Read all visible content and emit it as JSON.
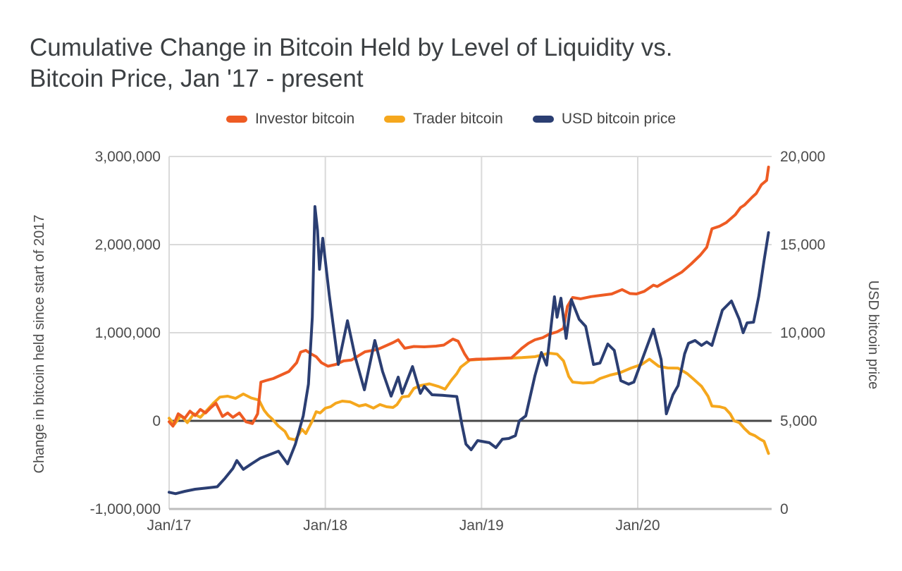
{
  "title_lines": [
    "Cumulative Change in Bitcoin Held by Level of Liquidity vs.",
    "Bitcoin Price, Jan '17 - present"
  ],
  "chart_data": {
    "type": "line",
    "title": "Cumulative Change in Bitcoin Held by Level of Liquidity vs. Bitcoin Price, Jan '17 - present",
    "legend_position": "top",
    "grid": true,
    "x_axis": {
      "unit": "months since Jan 2017",
      "range": [
        0,
        46.05
      ],
      "ticks": [
        {
          "pos": 0,
          "label": "Jan/17"
        },
        {
          "pos": 12,
          "label": "Jan/18"
        },
        {
          "pos": 24,
          "label": "Jan/19"
        },
        {
          "pos": 36,
          "label": "Jan/20"
        }
      ]
    },
    "left_axis": {
      "label": "Change in bitcoin held since start of 2017",
      "range": [
        -1000000,
        3000000
      ],
      "grid": [
        3000000,
        2000000,
        1000000
      ],
      "zero_line_value": 0,
      "ticks": [
        {
          "value": 3000000,
          "label": "3,000,000"
        },
        {
          "value": 2000000,
          "label": "2,000,000"
        },
        {
          "value": 1000000,
          "label": "1,000,000"
        },
        {
          "value": 0,
          "label": "0"
        },
        {
          "value": -1000000,
          "label": "-1,000,000"
        }
      ]
    },
    "right_axis": {
      "label": "USD bitcoin price",
      "range": [
        0,
        20000
      ],
      "ticks": [
        {
          "value": 20000,
          "label": "20,000"
        },
        {
          "value": 15000,
          "label": "15,000"
        },
        {
          "value": 10000,
          "label": "10,000"
        },
        {
          "value": 5000,
          "label": "5,000"
        },
        {
          "value": 0,
          "label": "0"
        }
      ]
    },
    "series": [
      {
        "name": "Investor bitcoin",
        "color": "#ee5b23",
        "axis": "left",
        "points": [
          [
            0,
            -10000
          ],
          [
            0.3,
            -60000
          ],
          [
            0.7,
            80000
          ],
          [
            1.2,
            30000
          ],
          [
            1.6,
            110000
          ],
          [
            2,
            60000
          ],
          [
            2.4,
            130000
          ],
          [
            2.8,
            90000
          ],
          [
            3.2,
            150000
          ],
          [
            3.6,
            200000
          ],
          [
            4.1,
            50000
          ],
          [
            4.5,
            90000
          ],
          [
            4.9,
            40000
          ],
          [
            5.4,
            90000
          ],
          [
            5.9,
            -10000
          ],
          [
            6.4,
            -30000
          ],
          [
            6.8,
            80000
          ],
          [
            7.05,
            440000
          ],
          [
            7.5,
            460000
          ],
          [
            8,
            480000
          ],
          [
            8.6,
            520000
          ],
          [
            9.2,
            560000
          ],
          [
            9.8,
            660000
          ],
          [
            10.1,
            780000
          ],
          [
            10.5,
            800000
          ],
          [
            10.9,
            760000
          ],
          [
            11.3,
            728000
          ],
          [
            11.7,
            660000
          ],
          [
            12.2,
            620000
          ],
          [
            12.8,
            640000
          ],
          [
            13.4,
            680000
          ],
          [
            14,
            690000
          ],
          [
            15.05,
            784000
          ],
          [
            16,
            810000
          ],
          [
            17.2,
            888000
          ],
          [
            17.6,
            920000
          ],
          [
            18.1,
            824000
          ],
          [
            18.8,
            844000
          ],
          [
            19.6,
            840000
          ],
          [
            20.5,
            848000
          ],
          [
            21.1,
            860000
          ],
          [
            21.8,
            928000
          ],
          [
            22.2,
            904000
          ],
          [
            22.7,
            760000
          ],
          [
            23,
            692000
          ],
          [
            23.6,
            700000
          ],
          [
            24.4,
            702000
          ],
          [
            25.2,
            708000
          ],
          [
            26.3,
            715000
          ],
          [
            26.7,
            768000
          ],
          [
            27.1,
            824000
          ],
          [
            27.6,
            880000
          ],
          [
            28.1,
            920000
          ],
          [
            28.7,
            944000
          ],
          [
            29.2,
            984000
          ],
          [
            29.8,
            1010000
          ],
          [
            30.3,
            1050000
          ],
          [
            30.6,
            1300000
          ],
          [
            31,
            1400000
          ],
          [
            31.6,
            1385000
          ],
          [
            32.4,
            1410000
          ],
          [
            33.2,
            1425000
          ],
          [
            34,
            1440000
          ],
          [
            34.8,
            1490000
          ],
          [
            35.4,
            1445000
          ],
          [
            35.9,
            1440000
          ],
          [
            36.5,
            1470000
          ],
          [
            37.2,
            1540000
          ],
          [
            37.5,
            1525000
          ],
          [
            37.9,
            1560000
          ],
          [
            38.6,
            1620000
          ],
          [
            39.4,
            1690000
          ],
          [
            40.1,
            1780000
          ],
          [
            40.8,
            1880000
          ],
          [
            41.3,
            1970000
          ],
          [
            41.7,
            2180000
          ],
          [
            42.3,
            2210000
          ],
          [
            42.8,
            2250000
          ],
          [
            43.5,
            2340000
          ],
          [
            43.9,
            2420000
          ],
          [
            44.2,
            2450000
          ],
          [
            44.8,
            2540000
          ],
          [
            45.1,
            2580000
          ],
          [
            45.5,
            2680000
          ],
          [
            45.9,
            2730000
          ],
          [
            46.05,
            2880000
          ]
        ]
      },
      {
        "name": "Trader bitcoin",
        "color": "#f5a71d",
        "axis": "left",
        "points": [
          [
            0,
            30000
          ],
          [
            0.4,
            -40000
          ],
          [
            0.9,
            60000
          ],
          [
            1.4,
            -20000
          ],
          [
            1.9,
            80000
          ],
          [
            2.4,
            40000
          ],
          [
            2.9,
            120000
          ],
          [
            3.4,
            200000
          ],
          [
            3.9,
            270000
          ],
          [
            4.5,
            280000
          ],
          [
            5.1,
            255000
          ],
          [
            5.7,
            305000
          ],
          [
            6.3,
            260000
          ],
          [
            6.9,
            235000
          ],
          [
            7.3,
            120000
          ],
          [
            7.6,
            64000
          ],
          [
            7.9,
            24000
          ],
          [
            8.4,
            -60000
          ],
          [
            8.9,
            -120000
          ],
          [
            9.2,
            -200000
          ],
          [
            9.7,
            -216000
          ],
          [
            10.2,
            -96000
          ],
          [
            10.5,
            -144000
          ],
          [
            11,
            0
          ],
          [
            11.3,
            104000
          ],
          [
            11.6,
            90000
          ],
          [
            12,
            144000
          ],
          [
            12.4,
            160000
          ],
          [
            12.8,
            200000
          ],
          [
            13.3,
            224000
          ],
          [
            13.9,
            215000
          ],
          [
            14.6,
            168000
          ],
          [
            15.1,
            184000
          ],
          [
            15.7,
            145000
          ],
          [
            16.2,
            185000
          ],
          [
            16.7,
            160000
          ],
          [
            17.2,
            152000
          ],
          [
            17.5,
            184000
          ],
          [
            17.9,
            272000
          ],
          [
            18.4,
            280000
          ],
          [
            18.8,
            368000
          ],
          [
            19.3,
            400000
          ],
          [
            20,
            420000
          ],
          [
            20.7,
            390000
          ],
          [
            21.2,
            360000
          ],
          [
            21.7,
            464000
          ],
          [
            22.1,
            536000
          ],
          [
            22.4,
            610000
          ],
          [
            23.1,
            690000
          ],
          [
            24,
            698000
          ],
          [
            25,
            704000
          ],
          [
            26.3,
            712000
          ],
          [
            27.1,
            718000
          ],
          [
            28.1,
            728000
          ],
          [
            29.2,
            768000
          ],
          [
            29.8,
            758000
          ],
          [
            30.3,
            680000
          ],
          [
            30.7,
            504000
          ],
          [
            31,
            440000
          ],
          [
            31.8,
            428000
          ],
          [
            32.6,
            436000
          ],
          [
            33.1,
            480000
          ],
          [
            33.9,
            520000
          ],
          [
            34.6,
            544000
          ],
          [
            35.5,
            600000
          ],
          [
            36.3,
            640000
          ],
          [
            36.9,
            700000
          ],
          [
            37.6,
            620000
          ],
          [
            38.3,
            600000
          ],
          [
            39.1,
            598000
          ],
          [
            39.8,
            536000
          ],
          [
            40.3,
            472000
          ],
          [
            40.9,
            392000
          ],
          [
            41.4,
            280000
          ],
          [
            41.7,
            168000
          ],
          [
            42.3,
            160000
          ],
          [
            42.7,
            144000
          ],
          [
            43.1,
            80000
          ],
          [
            43.4,
            0
          ],
          [
            43.8,
            -20000
          ],
          [
            44.2,
            -88000
          ],
          [
            44.6,
            -144000
          ],
          [
            45,
            -168000
          ],
          [
            45.4,
            -208000
          ],
          [
            45.7,
            -232000
          ],
          [
            46.05,
            -370000
          ]
        ]
      },
      {
        "name": "USD bitcoin price",
        "color": "#2b3e72",
        "axis": "right",
        "points": [
          [
            0,
            950
          ],
          [
            0.5,
            870
          ],
          [
            1.2,
            1000
          ],
          [
            2,
            1120
          ],
          [
            3,
            1200
          ],
          [
            3.7,
            1260
          ],
          [
            4.3,
            1750
          ],
          [
            4.9,
            2300
          ],
          [
            5.2,
            2750
          ],
          [
            5.7,
            2250
          ],
          [
            6.3,
            2550
          ],
          [
            7,
            2880
          ],
          [
            7.6,
            3050
          ],
          [
            8.4,
            3280
          ],
          [
            9.1,
            2560
          ],
          [
            9.7,
            3680
          ],
          [
            10.3,
            5280
          ],
          [
            10.7,
            7080
          ],
          [
            11,
            10880
          ],
          [
            11.2,
            17160
          ],
          [
            11.4,
            15800
          ],
          [
            11.55,
            13600
          ],
          [
            11.8,
            15360
          ],
          [
            12.3,
            12160
          ],
          [
            13,
            8200
          ],
          [
            13.7,
            10680
          ],
          [
            14.3,
            8600
          ],
          [
            15,
            6760
          ],
          [
            15.8,
            9560
          ],
          [
            16.4,
            7800
          ],
          [
            17.05,
            6400
          ],
          [
            17.6,
            7480
          ],
          [
            17.9,
            6560
          ],
          [
            18.7,
            8080
          ],
          [
            19.3,
            6560
          ],
          [
            19.6,
            6960
          ],
          [
            20.2,
            6480
          ],
          [
            21,
            6450
          ],
          [
            22.1,
            6380
          ],
          [
            22.5,
            4760
          ],
          [
            22.8,
            3680
          ],
          [
            23.2,
            3360
          ],
          [
            23.7,
            3880
          ],
          [
            24.6,
            3760
          ],
          [
            25.1,
            3480
          ],
          [
            25.6,
            3960
          ],
          [
            26.1,
            4000
          ],
          [
            26.6,
            4160
          ],
          [
            26.9,
            5000
          ],
          [
            27.4,
            5280
          ],
          [
            28.1,
            7560
          ],
          [
            28.6,
            8880
          ],
          [
            29,
            8160
          ],
          [
            29.6,
            12040
          ],
          [
            29.8,
            10880
          ],
          [
            30.1,
            11960
          ],
          [
            30.5,
            9680
          ],
          [
            30.9,
            11880
          ],
          [
            31.5,
            10760
          ],
          [
            32,
            10360
          ],
          [
            32.6,
            8200
          ],
          [
            33.1,
            8280
          ],
          [
            33.7,
            9360
          ],
          [
            34.2,
            9000
          ],
          [
            34.7,
            7280
          ],
          [
            35.3,
            7080
          ],
          [
            35.7,
            7200
          ],
          [
            36.4,
            8600
          ],
          [
            37.2,
            10200
          ],
          [
            37.8,
            8480
          ],
          [
            38.2,
            5400
          ],
          [
            38.7,
            6480
          ],
          [
            39.1,
            7000
          ],
          [
            39.6,
            8800
          ],
          [
            39.9,
            9400
          ],
          [
            40.4,
            9560
          ],
          [
            40.9,
            9280
          ],
          [
            41.3,
            9480
          ],
          [
            41.7,
            9280
          ],
          [
            42.5,
            11280
          ],
          [
            43.2,
            11800
          ],
          [
            43.8,
            10760
          ],
          [
            44.1,
            10000
          ],
          [
            44.4,
            10560
          ],
          [
            44.9,
            10600
          ],
          [
            45.3,
            12080
          ],
          [
            45.7,
            14080
          ],
          [
            46.05,
            15680
          ]
        ]
      }
    ],
    "styles": {
      "grid_color": "#dadada",
      "axis_line_color": "#bdbdbd",
      "zero_line_color": "#474747",
      "text_color": "#4c4c4c",
      "title_color": "#3c4043"
    }
  }
}
